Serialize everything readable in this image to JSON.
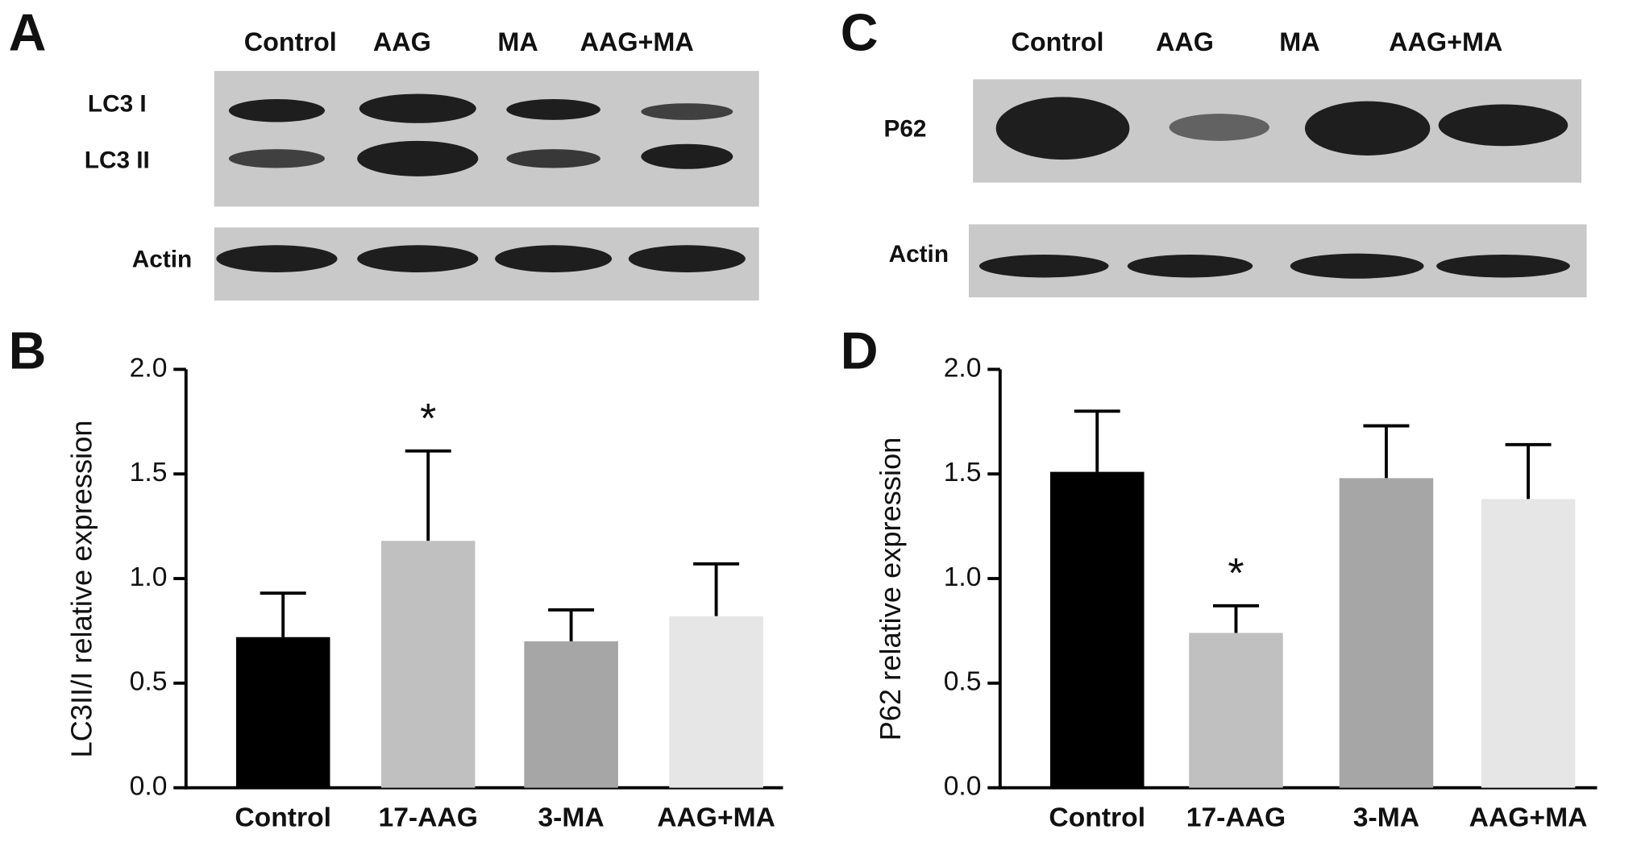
{
  "blots": [
    {
      "panel": "A",
      "lanes": [
        "Control",
        "AAG",
        "MA",
        "AAG+MA"
      ],
      "rows": [
        "LC3 I",
        "LC3 II",
        "Actin"
      ]
    },
    {
      "panel": "C",
      "lanes": [
        "Control",
        "AAG",
        "MA",
        "AAG+MA"
      ],
      "rows": [
        "P62",
        "Actin"
      ]
    }
  ],
  "chart_data": [
    {
      "type": "bar",
      "panel": "B",
      "y_label": "LC3II/I relative expression",
      "categories": [
        "Control",
        "17-AAG",
        "3-MA",
        "AAG+MA"
      ],
      "values": [
        0.72,
        1.18,
        0.7,
        0.82
      ],
      "errors": [
        0.21,
        0.43,
        0.15,
        0.25
      ],
      "colors": [
        "#000000",
        "#c0c0c0",
        "#a6a6a6",
        "#e6e6e6"
      ],
      "ylim": [
        0,
        2
      ],
      "yticks": [
        {
          "value": 0,
          "label": "0.0"
        },
        0.5,
        {
          "value": 1,
          "label": "1.0"
        },
        1.5,
        {
          "value": 2,
          "label": "2.0"
        }
      ],
      "annotations": [
        {
          "category": "17-AAG",
          "text": "*"
        }
      ]
    },
    {
      "type": "bar",
      "panel": "D",
      "y_label": "P62 relative expression",
      "categories": [
        "Control",
        "17-AAG",
        "3-MA",
        "AAG+MA"
      ],
      "values": [
        1.51,
        0.74,
        1.48,
        1.38
      ],
      "errors": [
        0.29,
        0.13,
        0.25,
        0.26
      ],
      "colors": [
        "#000000",
        "#c0c0c0",
        "#a6a6a6",
        "#e6e6e6"
      ],
      "ylim": [
        0,
        2
      ],
      "yticks": [
        {
          "value": 0,
          "label": "0.0"
        },
        0.5,
        {
          "value": 1,
          "label": "1.0"
        },
        1.5,
        {
          "value": 2,
          "label": "2.0"
        }
      ],
      "annotations": [
        {
          "category": "17-AAG",
          "text": "*"
        }
      ]
    }
  ]
}
